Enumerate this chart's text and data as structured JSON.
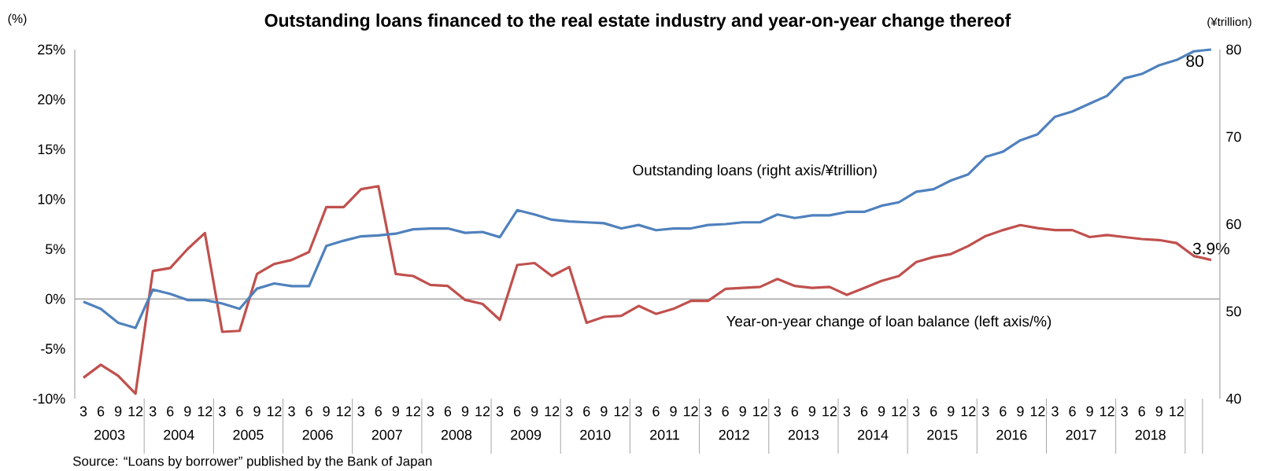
{
  "chart_data": {
    "type": "line",
    "title": "Outstanding loans financed to the real estate industry and year-on-year change thereof",
    "ylabel": "(%)",
    "y2label": "(¥trillion)",
    "categories": [
      "3",
      "6",
      "9",
      "12",
      "3",
      "6",
      "9",
      "12",
      "3",
      "6",
      "9",
      "12",
      "3",
      "6",
      "9",
      "12",
      "3",
      "6",
      "9",
      "12",
      "3",
      "6",
      "9",
      "12",
      "3",
      "6",
      "9",
      "12",
      "3",
      "6",
      "9",
      "12",
      "3",
      "6",
      "9",
      "12",
      "3",
      "6",
      "9",
      "12",
      "3",
      "6",
      "9",
      "12",
      "3",
      "6",
      "9",
      "12",
      "3",
      "6",
      "9",
      "12",
      "3",
      "6",
      "9",
      "12",
      "3",
      "6",
      "9",
      "12",
      "3",
      "6",
      "9",
      "12",
      null,
      null
    ],
    "series": [
      {
        "name": "Year-on-year change of loan balance (left axis/%)",
        "color": "#c0504d",
        "axis": "y",
        "values": [
          -7.9,
          -6.6,
          -7.7,
          -9.5,
          2.8,
          3.1,
          5.0,
          6.6,
          -3.3,
          -3.2,
          2.5,
          3.5,
          3.9,
          4.7,
          9.2,
          9.2,
          11.0,
          11.3,
          2.5,
          2.3,
          1.4,
          1.3,
          -0.1,
          -0.5,
          -2.1,
          3.4,
          3.6,
          2.3,
          3.2,
          -2.4,
          -1.8,
          -1.7,
          -0.7,
          -1.5,
          -1.0,
          -0.2,
          -0.2,
          1.0,
          1.1,
          1.2,
          2.0,
          1.3,
          1.1,
          1.2,
          0.4,
          1.1,
          1.8,
          2.3,
          3.7,
          4.2,
          4.5,
          5.3,
          6.3,
          6.9,
          7.4,
          7.1,
          6.9,
          6.9,
          6.2,
          6.4,
          6.2,
          6.0,
          5.9,
          5.6,
          4.3,
          3.9
        ],
        "value_labels": [
          null,
          null,
          null,
          null,
          null,
          null,
          null,
          null,
          null,
          null,
          null,
          null,
          null,
          null,
          null,
          null,
          null,
          null,
          null,
          null,
          null,
          null,
          null,
          null,
          null,
          null,
          null,
          null,
          null,
          null,
          null,
          null,
          null,
          null,
          null,
          null,
          null,
          null,
          null,
          null,
          null,
          null,
          null,
          null,
          null,
          null,
          null,
          null,
          null,
          null,
          null,
          null,
          null,
          null,
          null,
          null,
          null,
          null,
          null,
          null,
          null,
          null,
          null,
          null,
          null,
          "3.9%"
        ]
      },
      {
        "name": "Outstanding loans (right axis/¥trillion)",
        "color": "#4f81bd",
        "axis": "y2",
        "values": [
          51.1,
          50.3,
          48.7,
          48.1,
          52.5,
          52.0,
          51.3,
          51.3,
          50.9,
          50.3,
          52.6,
          53.2,
          52.9,
          52.9,
          57.5,
          58.1,
          58.6,
          58.7,
          58.9,
          59.4,
          59.5,
          59.5,
          59.0,
          59.1,
          58.5,
          61.6,
          61.1,
          60.5,
          60.3,
          60.2,
          60.1,
          59.5,
          59.9,
          59.3,
          59.5,
          59.5,
          59.9,
          60.0,
          60.2,
          60.2,
          61.1,
          60.7,
          61.0,
          61.0,
          61.4,
          61.4,
          62.1,
          62.5,
          63.7,
          64.0,
          65.0,
          65.7,
          67.7,
          68.3,
          69.6,
          70.3,
          72.3,
          72.9,
          73.8,
          74.7,
          76.7,
          77.2,
          78.2,
          78.8,
          79.8,
          80.0
        ],
        "value_labels": [
          null,
          null,
          null,
          null,
          null,
          null,
          null,
          null,
          null,
          null,
          null,
          null,
          null,
          null,
          null,
          null,
          null,
          null,
          null,
          null,
          null,
          null,
          null,
          null,
          null,
          null,
          null,
          null,
          null,
          null,
          null,
          null,
          null,
          null,
          null,
          null,
          null,
          null,
          null,
          null,
          null,
          null,
          null,
          null,
          null,
          null,
          null,
          null,
          null,
          null,
          null,
          null,
          null,
          null,
          null,
          null,
          null,
          null,
          null,
          null,
          null,
          null,
          null,
          null,
          null,
          "80"
        ]
      }
    ],
    "ylim": [
      -10,
      25
    ],
    "yticks": [
      {
        "value": -10,
        "label": "-10%"
      },
      {
        "value": -5,
        "label": "-5%"
      },
      {
        "value": 0,
        "label": "0%"
      },
      {
        "value": 5,
        "label": "5%"
      },
      {
        "value": 10,
        "label": "10%"
      },
      {
        "value": 15,
        "label": "15%"
      },
      {
        "value": 20,
        "label": "20%"
      },
      {
        "value": 25,
        "label": "25%"
      }
    ],
    "y2lim": [
      40,
      80
    ],
    "y2ticks": [
      40,
      50,
      60,
      70,
      80
    ],
    "ref_lines": [
      {
        "axis": "y",
        "value": 0,
        "color": "#a6a6a6"
      }
    ],
    "grid": false,
    "marker": "none",
    "annotations": [
      "Source: “Loans by borrower” published by the Bank of Japan",
      "2003",
      "2004",
      "2005",
      "2006",
      "2007",
      "2008",
      "2009",
      "2010",
      "2011",
      "2012",
      "2013",
      "2014",
      "2015",
      "2016",
      "2017",
      "2018"
    ]
  }
}
